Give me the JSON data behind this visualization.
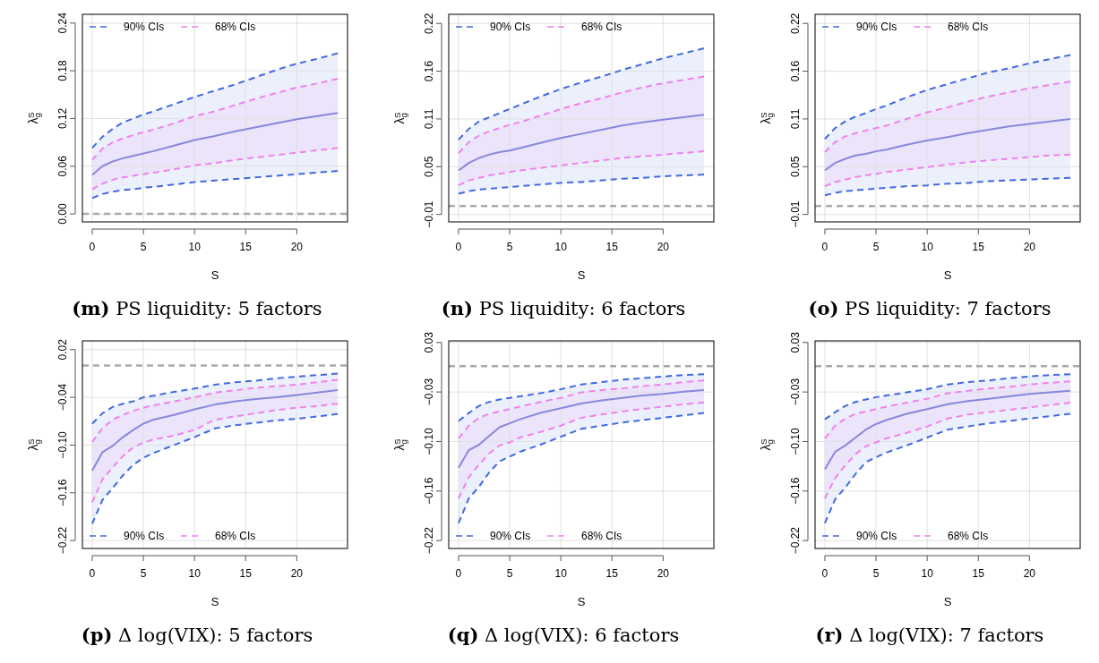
{
  "chart_data": [
    {
      "type": "line",
      "title": "(m) PS liquidity: 5 factors",
      "xlabel": "S",
      "ylabel": "λ$_{g}$$^{S}$",
      "x": [
        0,
        1,
        2,
        3,
        4,
        5,
        6,
        8,
        10,
        12,
        14,
        16,
        18,
        20,
        22,
        24
      ],
      "xlim": [
        -0.96,
        24.96
      ],
      "xticks": [
        0,
        5,
        10,
        15,
        20
      ],
      "ylim": [
        -0.01,
        0.251
      ],
      "yticks": [
        {
          "value": 0,
          "label": "0.00"
        },
        0.06,
        0.12,
        0.18,
        0.24
      ],
      "grid": true,
      "legend": "top left",
      "ref_lines": [
        {
          "axis": "y",
          "value": 0,
          "color": "#aaaaaa",
          "line_style": "dashed"
        }
      ],
      "series": [
        {
          "name": "90% CIs",
          "color": "#4169e1",
          "line_style": "dashed",
          "lower": [
            0.02,
            0.025,
            0.028,
            0.03,
            0.031,
            0.033,
            0.034,
            0.037,
            0.04,
            0.042,
            0.044,
            0.046,
            0.048,
            0.05,
            0.052,
            0.054
          ],
          "upper": [
            0.083,
            0.097,
            0.107,
            0.115,
            0.12,
            0.125,
            0.129,
            0.138,
            0.147,
            0.155,
            0.163,
            0.172,
            0.181,
            0.189,
            0.195,
            0.202
          ],
          "values": [
            0.083,
            0.097,
            0.107,
            0.115,
            0.12,
            0.125,
            0.129,
            0.138,
            0.147,
            0.155,
            0.163,
            0.172,
            0.181,
            0.189,
            0.195,
            0.202
          ]
        },
        {
          "color": "#4169e1",
          "line_style": "dashed",
          "values": [
            0.02,
            0.025,
            0.028,
            0.03,
            0.031,
            0.033,
            0.034,
            0.037,
            0.04,
            0.042,
            0.044,
            0.046,
            0.048,
            0.05,
            0.052,
            0.054
          ]
        },
        {
          "name": "68% CIs",
          "color": "#ee82ee",
          "line_style": "dashed",
          "lower": [
            0.031,
            0.038,
            0.043,
            0.046,
            0.048,
            0.05,
            0.052,
            0.056,
            0.061,
            0.064,
            0.068,
            0.071,
            0.074,
            0.077,
            0.08,
            0.083
          ],
          "upper": [
            0.068,
            0.082,
            0.09,
            0.095,
            0.099,
            0.103,
            0.106,
            0.114,
            0.123,
            0.129,
            0.137,
            0.145,
            0.152,
            0.159,
            0.164,
            0.17
          ],
          "values": [
            0.068,
            0.082,
            0.09,
            0.095,
            0.099,
            0.103,
            0.106,
            0.114,
            0.123,
            0.129,
            0.137,
            0.145,
            0.152,
            0.159,
            0.164,
            0.17
          ]
        },
        {
          "color": "#ee82ee",
          "line_style": "dashed",
          "values": [
            0.031,
            0.038,
            0.043,
            0.046,
            0.048,
            0.05,
            0.052,
            0.056,
            0.061,
            0.064,
            0.068,
            0.071,
            0.074,
            0.077,
            0.08,
            0.083
          ]
        },
        {
          "color": "#8888dd",
          "line_style": "solid",
          "values": [
            0.049,
            0.06,
            0.066,
            0.07,
            0.073,
            0.076,
            0.079,
            0.086,
            0.093,
            0.098,
            0.104,
            0.109,
            0.114,
            0.119,
            0.123,
            0.127
          ]
        }
      ]
    },
    {
      "type": "line",
      "title": "(n) PS liquidity: 6 factors",
      "xlabel": "S",
      "ylabel": "λ$_{g}$$^{S}$",
      "x": [
        0,
        1,
        2,
        3,
        4,
        5,
        6,
        8,
        10,
        12,
        14,
        16,
        18,
        20,
        22,
        24
      ],
      "xlim": [
        -0.96,
        24.96
      ],
      "xticks": [
        0,
        5,
        10,
        15,
        20
      ],
      "ylim": [
        -0.019,
        0.231
      ],
      "yticks": [
        {
          "value": -0.01,
          "label": "−0.01"
        },
        {
          "value": 0.0475,
          "label": "0.05"
        },
        {
          "value": 0.105,
          "label": "0.11"
        },
        {
          "value": 0.1625,
          "label": "0.16"
        },
        0.22
      ],
      "grid": true,
      "legend": "top left",
      "ref_lines": [
        {
          "axis": "y",
          "value": 0,
          "color": "#aaaaaa",
          "line_style": "dashed"
        }
      ],
      "series": [
        {
          "name": "90% CIs",
          "color": "#4169e1",
          "line_style": "dashed",
          "lower": [
            0.015,
            0.018,
            0.02,
            0.021,
            0.022,
            0.023,
            0.024,
            0.026,
            0.028,
            0.029,
            0.031,
            0.033,
            0.034,
            0.036,
            0.037,
            0.038
          ],
          "upper": [
            0.08,
            0.093,
            0.102,
            0.107,
            0.112,
            0.117,
            0.122,
            0.132,
            0.141,
            0.149,
            0.156,
            0.164,
            0.171,
            0.178,
            0.184,
            0.19
          ],
          "values": [
            0.08,
            0.093,
            0.102,
            0.107,
            0.112,
            0.117,
            0.122,
            0.132,
            0.141,
            0.149,
            0.156,
            0.164,
            0.171,
            0.178,
            0.184,
            0.19
          ]
        },
        {
          "color": "#4169e1",
          "line_style": "dashed",
          "values": [
            0.015,
            0.018,
            0.02,
            0.021,
            0.022,
            0.023,
            0.024,
            0.026,
            0.028,
            0.029,
            0.031,
            0.033,
            0.034,
            0.036,
            0.037,
            0.038
          ]
        },
        {
          "name": "68% CIs",
          "color": "#ee82ee",
          "line_style": "dashed",
          "lower": [
            0.025,
            0.031,
            0.034,
            0.037,
            0.039,
            0.041,
            0.043,
            0.046,
            0.049,
            0.052,
            0.055,
            0.058,
            0.06,
            0.062,
            0.064,
            0.066
          ],
          "upper": [
            0.064,
            0.077,
            0.085,
            0.09,
            0.094,
            0.098,
            0.101,
            0.109,
            0.117,
            0.124,
            0.13,
            0.137,
            0.143,
            0.148,
            0.152,
            0.156
          ],
          "values": [
            0.064,
            0.077,
            0.085,
            0.09,
            0.094,
            0.098,
            0.101,
            0.109,
            0.117,
            0.124,
            0.13,
            0.137,
            0.143,
            0.148,
            0.152,
            0.156
          ]
        },
        {
          "color": "#ee82ee",
          "line_style": "dashed",
          "values": [
            0.025,
            0.031,
            0.034,
            0.037,
            0.039,
            0.041,
            0.043,
            0.046,
            0.049,
            0.052,
            0.055,
            0.058,
            0.06,
            0.062,
            0.064,
            0.066
          ]
        },
        {
          "color": "#8888dd",
          "line_style": "solid",
          "values": [
            0.043,
            0.052,
            0.058,
            0.062,
            0.065,
            0.067,
            0.07,
            0.076,
            0.082,
            0.087,
            0.092,
            0.097,
            0.101,
            0.104,
            0.107,
            0.11
          ]
        }
      ]
    },
    {
      "type": "line",
      "title": "(o) PS liquidity: 7 factors",
      "xlabel": "S",
      "ylabel": "λ$_{g}$$^{S}$",
      "x": [
        0,
        1,
        2,
        3,
        4,
        5,
        6,
        8,
        10,
        12,
        14,
        16,
        18,
        20,
        22,
        24
      ],
      "xlim": [
        -0.96,
        24.96
      ],
      "xticks": [
        0,
        5,
        10,
        15,
        20
      ],
      "ylim": [
        -0.019,
        0.231
      ],
      "yticks": [
        {
          "value": -0.01,
          "label": "−0.01"
        },
        {
          "value": 0.0475,
          "label": "0.05"
        },
        {
          "value": 0.105,
          "label": "0.11"
        },
        {
          "value": 0.1625,
          "label": "0.16"
        },
        0.22
      ],
      "grid": true,
      "legend": "top left",
      "ref_lines": [
        {
          "axis": "y",
          "value": 0,
          "color": "#aaaaaa",
          "line_style": "dashed"
        }
      ],
      "series": [
        {
          "name": "90% CIs",
          "color": "#4169e1",
          "line_style": "dashed",
          "lower": [
            0.013,
            0.016,
            0.018,
            0.019,
            0.02,
            0.021,
            0.022,
            0.024,
            0.025,
            0.027,
            0.028,
            0.03,
            0.031,
            0.032,
            0.033,
            0.034
          ],
          "upper": [
            0.081,
            0.094,
            0.102,
            0.108,
            0.112,
            0.117,
            0.121,
            0.131,
            0.14,
            0.147,
            0.154,
            0.161,
            0.166,
            0.172,
            0.177,
            0.182
          ],
          "values": [
            0.081,
            0.094,
            0.102,
            0.108,
            0.112,
            0.117,
            0.121,
            0.131,
            0.14,
            0.147,
            0.154,
            0.161,
            0.166,
            0.172,
            0.177,
            0.182
          ]
        },
        {
          "color": "#4169e1",
          "line_style": "dashed",
          "values": [
            0.013,
            0.016,
            0.018,
            0.019,
            0.02,
            0.021,
            0.022,
            0.024,
            0.025,
            0.027,
            0.028,
            0.03,
            0.031,
            0.032,
            0.033,
            0.034
          ]
        },
        {
          "name": "68% CIs",
          "color": "#ee82ee",
          "line_style": "dashed",
          "lower": [
            0.024,
            0.029,
            0.032,
            0.035,
            0.037,
            0.039,
            0.041,
            0.044,
            0.047,
            0.05,
            0.053,
            0.055,
            0.057,
            0.059,
            0.061,
            0.062
          ],
          "upper": [
            0.065,
            0.077,
            0.084,
            0.088,
            0.091,
            0.094,
            0.097,
            0.105,
            0.113,
            0.119,
            0.126,
            0.132,
            0.137,
            0.142,
            0.146,
            0.15
          ],
          "values": [
            0.065,
            0.077,
            0.084,
            0.088,
            0.091,
            0.094,
            0.097,
            0.105,
            0.113,
            0.119,
            0.126,
            0.132,
            0.137,
            0.142,
            0.146,
            0.15
          ]
        },
        {
          "color": "#ee82ee",
          "line_style": "dashed",
          "values": [
            0.024,
            0.029,
            0.032,
            0.035,
            0.037,
            0.039,
            0.041,
            0.044,
            0.047,
            0.05,
            0.053,
            0.055,
            0.057,
            0.059,
            0.061,
            0.062
          ]
        },
        {
          "color": "#8888dd",
          "line_style": "solid",
          "values": [
            0.043,
            0.052,
            0.057,
            0.061,
            0.063,
            0.066,
            0.068,
            0.074,
            0.079,
            0.083,
            0.088,
            0.092,
            0.096,
            0.099,
            0.102,
            0.105
          ]
        }
      ]
    },
    {
      "type": "line",
      "title": "(p) Δ log(VIX): 5 factors",
      "xlabel": "S",
      "ylabel": "λ$_{g}$$^{S}$",
      "x": [
        0,
        1,
        2,
        3,
        4,
        5,
        6,
        8,
        10,
        12,
        14,
        16,
        18,
        20,
        22,
        24
      ],
      "xlim": [
        -0.96,
        24.96
      ],
      "xticks": [
        0,
        5,
        10,
        15,
        20
      ],
      "ylim": [
        -0.23,
        0.031
      ],
      "yticks": [
        {
          "value": -0.22,
          "label": "−0.22"
        },
        {
          "value": -0.16,
          "label": "−0.16"
        },
        {
          "value": -0.1,
          "label": "−0.10"
        },
        {
          "value": -0.04,
          "label": "−0.04"
        },
        0.02
      ],
      "grid": true,
      "legend": "bottom left",
      "ref_lines": [
        {
          "axis": "y",
          "value": 0,
          "color": "#aaaaaa",
          "line_style": "dashed"
        }
      ],
      "series": [
        {
          "name": "90% CIs",
          "color": "#4169e1",
          "line_style": "dashed",
          "lower": [
            -0.199,
            -0.169,
            -0.154,
            -0.138,
            -0.125,
            -0.116,
            -0.11,
            -0.1,
            -0.09,
            -0.079,
            -0.075,
            -0.072,
            -0.069,
            -0.067,
            -0.064,
            -0.061
          ],
          "upper": [
            -0.073,
            -0.06,
            -0.052,
            -0.048,
            -0.045,
            -0.04,
            -0.038,
            -0.033,
            -0.029,
            -0.024,
            -0.021,
            -0.019,
            -0.016,
            -0.014,
            -0.012,
            -0.01
          ],
          "values": [
            -0.073,
            -0.06,
            -0.052,
            -0.048,
            -0.045,
            -0.04,
            -0.038,
            -0.033,
            -0.029,
            -0.024,
            -0.021,
            -0.019,
            -0.016,
            -0.014,
            -0.012,
            -0.01
          ]
        },
        {
          "color": "#4169e1",
          "line_style": "dashed",
          "values": [
            -0.199,
            -0.169,
            -0.154,
            -0.138,
            -0.125,
            -0.116,
            -0.11,
            -0.1,
            -0.09,
            -0.079,
            -0.075,
            -0.072,
            -0.069,
            -0.067,
            -0.064,
            -0.061
          ]
        },
        {
          "name": "68% CIs",
          "color": "#ee82ee",
          "line_style": "dashed",
          "lower": [
            -0.172,
            -0.143,
            -0.128,
            -0.114,
            -0.103,
            -0.097,
            -0.093,
            -0.088,
            -0.081,
            -0.068,
            -0.064,
            -0.06,
            -0.056,
            -0.053,
            -0.051,
            -0.048
          ],
          "upper": [
            -0.096,
            -0.079,
            -0.068,
            -0.062,
            -0.057,
            -0.053,
            -0.05,
            -0.045,
            -0.04,
            -0.034,
            -0.031,
            -0.028,
            -0.026,
            -0.024,
            -0.021,
            -0.018
          ],
          "values": [
            -0.096,
            -0.079,
            -0.068,
            -0.062,
            -0.057,
            -0.053,
            -0.05,
            -0.045,
            -0.04,
            -0.034,
            -0.031,
            -0.028,
            -0.026,
            -0.024,
            -0.021,
            -0.018
          ]
        },
        {
          "color": "#ee82ee",
          "line_style": "dashed",
          "values": [
            -0.172,
            -0.143,
            -0.128,
            -0.114,
            -0.103,
            -0.097,
            -0.093,
            -0.088,
            -0.081,
            -0.068,
            -0.064,
            -0.06,
            -0.056,
            -0.053,
            -0.051,
            -0.048
          ]
        },
        {
          "color": "#8888dd",
          "line_style": "solid",
          "values": [
            -0.132,
            -0.109,
            -0.101,
            -0.09,
            -0.081,
            -0.073,
            -0.068,
            -0.062,
            -0.055,
            -0.049,
            -0.045,
            -0.042,
            -0.04,
            -0.037,
            -0.034,
            -0.031
          ]
        }
      ]
    },
    {
      "type": "line",
      "title": "(q) Δ log(VIX): 6 factors",
      "xlabel": "S",
      "ylabel": "λ$_{g}$$^{S}$",
      "x": [
        0,
        1,
        2,
        3,
        4,
        5,
        6,
        8,
        10,
        12,
        14,
        16,
        18,
        20,
        22,
        24
      ],
      "xlim": [
        -0.96,
        24.96
      ],
      "xticks": [
        0,
        5,
        10,
        15,
        20
      ],
      "ylim": [
        -0.23,
        0.032
      ],
      "yticks": [
        {
          "value": -0.22,
          "label": "−0.22"
        },
        {
          "value": -0.1575,
          "label": "−0.16"
        },
        {
          "value": -0.095,
          "label": "−0.10"
        },
        {
          "value": -0.0325,
          "label": "−0.03"
        },
        0.03
      ],
      "grid": true,
      "legend": "bottom left",
      "ref_lines": [
        {
          "axis": "y",
          "value": 0,
          "color": "#aaaaaa",
          "line_style": "dashed"
        }
      ],
      "series": [
        {
          "name": "90% CIs",
          "color": "#4169e1",
          "line_style": "dashed",
          "lower": [
            -0.198,
            -0.167,
            -0.152,
            -0.134,
            -0.12,
            -0.114,
            -0.108,
            -0.099,
            -0.089,
            -0.079,
            -0.075,
            -0.071,
            -0.068,
            -0.065,
            -0.062,
            -0.059
          ],
          "upper": [
            -0.069,
            -0.059,
            -0.05,
            -0.045,
            -0.042,
            -0.04,
            -0.038,
            -0.034,
            -0.029,
            -0.023,
            -0.02,
            -0.017,
            -0.015,
            -0.013,
            -0.011,
            -0.01
          ],
          "values": [
            -0.069,
            -0.059,
            -0.05,
            -0.045,
            -0.042,
            -0.04,
            -0.038,
            -0.034,
            -0.029,
            -0.023,
            -0.02,
            -0.017,
            -0.015,
            -0.013,
            -0.011,
            -0.01
          ]
        },
        {
          "color": "#4169e1",
          "line_style": "dashed",
          "values": [
            -0.198,
            -0.167,
            -0.152,
            -0.134,
            -0.12,
            -0.114,
            -0.108,
            -0.099,
            -0.089,
            -0.079,
            -0.075,
            -0.071,
            -0.068,
            -0.065,
            -0.062,
            -0.059
          ]
        },
        {
          "name": "68% CIs",
          "color": "#ee82ee",
          "line_style": "dashed",
          "lower": [
            -0.167,
            -0.14,
            -0.124,
            -0.11,
            -0.1,
            -0.096,
            -0.09,
            -0.083,
            -0.075,
            -0.065,
            -0.061,
            -0.057,
            -0.054,
            -0.051,
            -0.048,
            -0.046
          ],
          "upper": [
            -0.091,
            -0.075,
            -0.065,
            -0.06,
            -0.057,
            -0.054,
            -0.051,
            -0.045,
            -0.04,
            -0.033,
            -0.03,
            -0.028,
            -0.025,
            -0.023,
            -0.02,
            -0.018
          ],
          "values": [
            -0.091,
            -0.075,
            -0.065,
            -0.06,
            -0.057,
            -0.054,
            -0.051,
            -0.045,
            -0.04,
            -0.033,
            -0.03,
            -0.028,
            -0.025,
            -0.023,
            -0.02,
            -0.018
          ]
        },
        {
          "color": "#ee82ee",
          "line_style": "dashed",
          "values": [
            -0.167,
            -0.14,
            -0.124,
            -0.11,
            -0.1,
            -0.096,
            -0.09,
            -0.083,
            -0.075,
            -0.065,
            -0.061,
            -0.057,
            -0.054,
            -0.051,
            -0.048,
            -0.046
          ]
        },
        {
          "color": "#8888dd",
          "line_style": "solid",
          "values": [
            -0.128,
            -0.106,
            -0.099,
            -0.088,
            -0.077,
            -0.072,
            -0.067,
            -0.059,
            -0.053,
            -0.047,
            -0.043,
            -0.04,
            -0.037,
            -0.035,
            -0.032,
            -0.03
          ]
        }
      ]
    },
    {
      "type": "line",
      "title": "(r) Δ log(VIX): 7 factors",
      "xlabel": "S",
      "ylabel": "λ$_{g}$$^{S}$",
      "x": [
        0,
        1,
        2,
        3,
        4,
        5,
        6,
        8,
        10,
        12,
        14,
        16,
        18,
        20,
        22,
        24
      ],
      "xlim": [
        -0.96,
        24.96
      ],
      "xticks": [
        0,
        5,
        10,
        15,
        20
      ],
      "ylim": [
        -0.23,
        0.032
      ],
      "yticks": [
        {
          "value": -0.22,
          "label": "−0.22"
        },
        {
          "value": -0.1575,
          "label": "−0.16"
        },
        {
          "value": -0.095,
          "label": "−0.10"
        },
        {
          "value": -0.0325,
          "label": "−0.03"
        },
        0.03
      ],
      "grid": true,
      "legend": "bottom left",
      "ref_lines": [
        {
          "axis": "y",
          "value": 0,
          "color": "#aaaaaa",
          "line_style": "dashed"
        }
      ],
      "series": [
        {
          "name": "90% CIs",
          "color": "#4169e1",
          "line_style": "dashed",
          "lower": [
            -0.198,
            -0.168,
            -0.153,
            -0.136,
            -0.121,
            -0.115,
            -0.109,
            -0.1,
            -0.09,
            -0.08,
            -0.076,
            -0.072,
            -0.069,
            -0.066,
            -0.063,
            -0.06
          ],
          "upper": [
            -0.067,
            -0.058,
            -0.05,
            -0.045,
            -0.042,
            -0.039,
            -0.037,
            -0.033,
            -0.029,
            -0.023,
            -0.02,
            -0.018,
            -0.015,
            -0.013,
            -0.011,
            -0.01
          ],
          "values": [
            -0.067,
            -0.058,
            -0.05,
            -0.045,
            -0.042,
            -0.039,
            -0.037,
            -0.033,
            -0.029,
            -0.023,
            -0.02,
            -0.018,
            -0.015,
            -0.013,
            -0.011,
            -0.01
          ]
        },
        {
          "color": "#4169e1",
          "line_style": "dashed",
          "values": [
            -0.198,
            -0.168,
            -0.153,
            -0.136,
            -0.121,
            -0.115,
            -0.109,
            -0.1,
            -0.09,
            -0.08,
            -0.076,
            -0.072,
            -0.069,
            -0.066,
            -0.063,
            -0.06
          ]
        },
        {
          "name": "68% CIs",
          "color": "#ee82ee",
          "line_style": "dashed",
          "lower": [
            -0.167,
            -0.141,
            -0.125,
            -0.111,
            -0.101,
            -0.096,
            -0.091,
            -0.084,
            -0.076,
            -0.066,
            -0.061,
            -0.058,
            -0.055,
            -0.052,
            -0.049,
            -0.046
          ],
          "upper": [
            -0.091,
            -0.075,
            -0.066,
            -0.06,
            -0.057,
            -0.054,
            -0.051,
            -0.046,
            -0.041,
            -0.034,
            -0.031,
            -0.028,
            -0.026,
            -0.023,
            -0.021,
            -0.019
          ],
          "values": [
            -0.091,
            -0.075,
            -0.066,
            -0.06,
            -0.057,
            -0.054,
            -0.051,
            -0.046,
            -0.041,
            -0.034,
            -0.031,
            -0.028,
            -0.026,
            -0.023,
            -0.021,
            -0.019
          ]
        },
        {
          "color": "#ee82ee",
          "line_style": "dashed",
          "values": [
            -0.167,
            -0.141,
            -0.125,
            -0.111,
            -0.101,
            -0.096,
            -0.091,
            -0.084,
            -0.076,
            -0.066,
            -0.061,
            -0.058,
            -0.055,
            -0.052,
            -0.049,
            -0.046
          ]
        },
        {
          "color": "#8888dd",
          "line_style": "solid",
          "values": [
            -0.13,
            -0.108,
            -0.1,
            -0.09,
            -0.08,
            -0.073,
            -0.068,
            -0.06,
            -0.054,
            -0.048,
            -0.044,
            -0.041,
            -0.038,
            -0.035,
            -0.033,
            -0.031
          ]
        }
      ]
    }
  ]
}
